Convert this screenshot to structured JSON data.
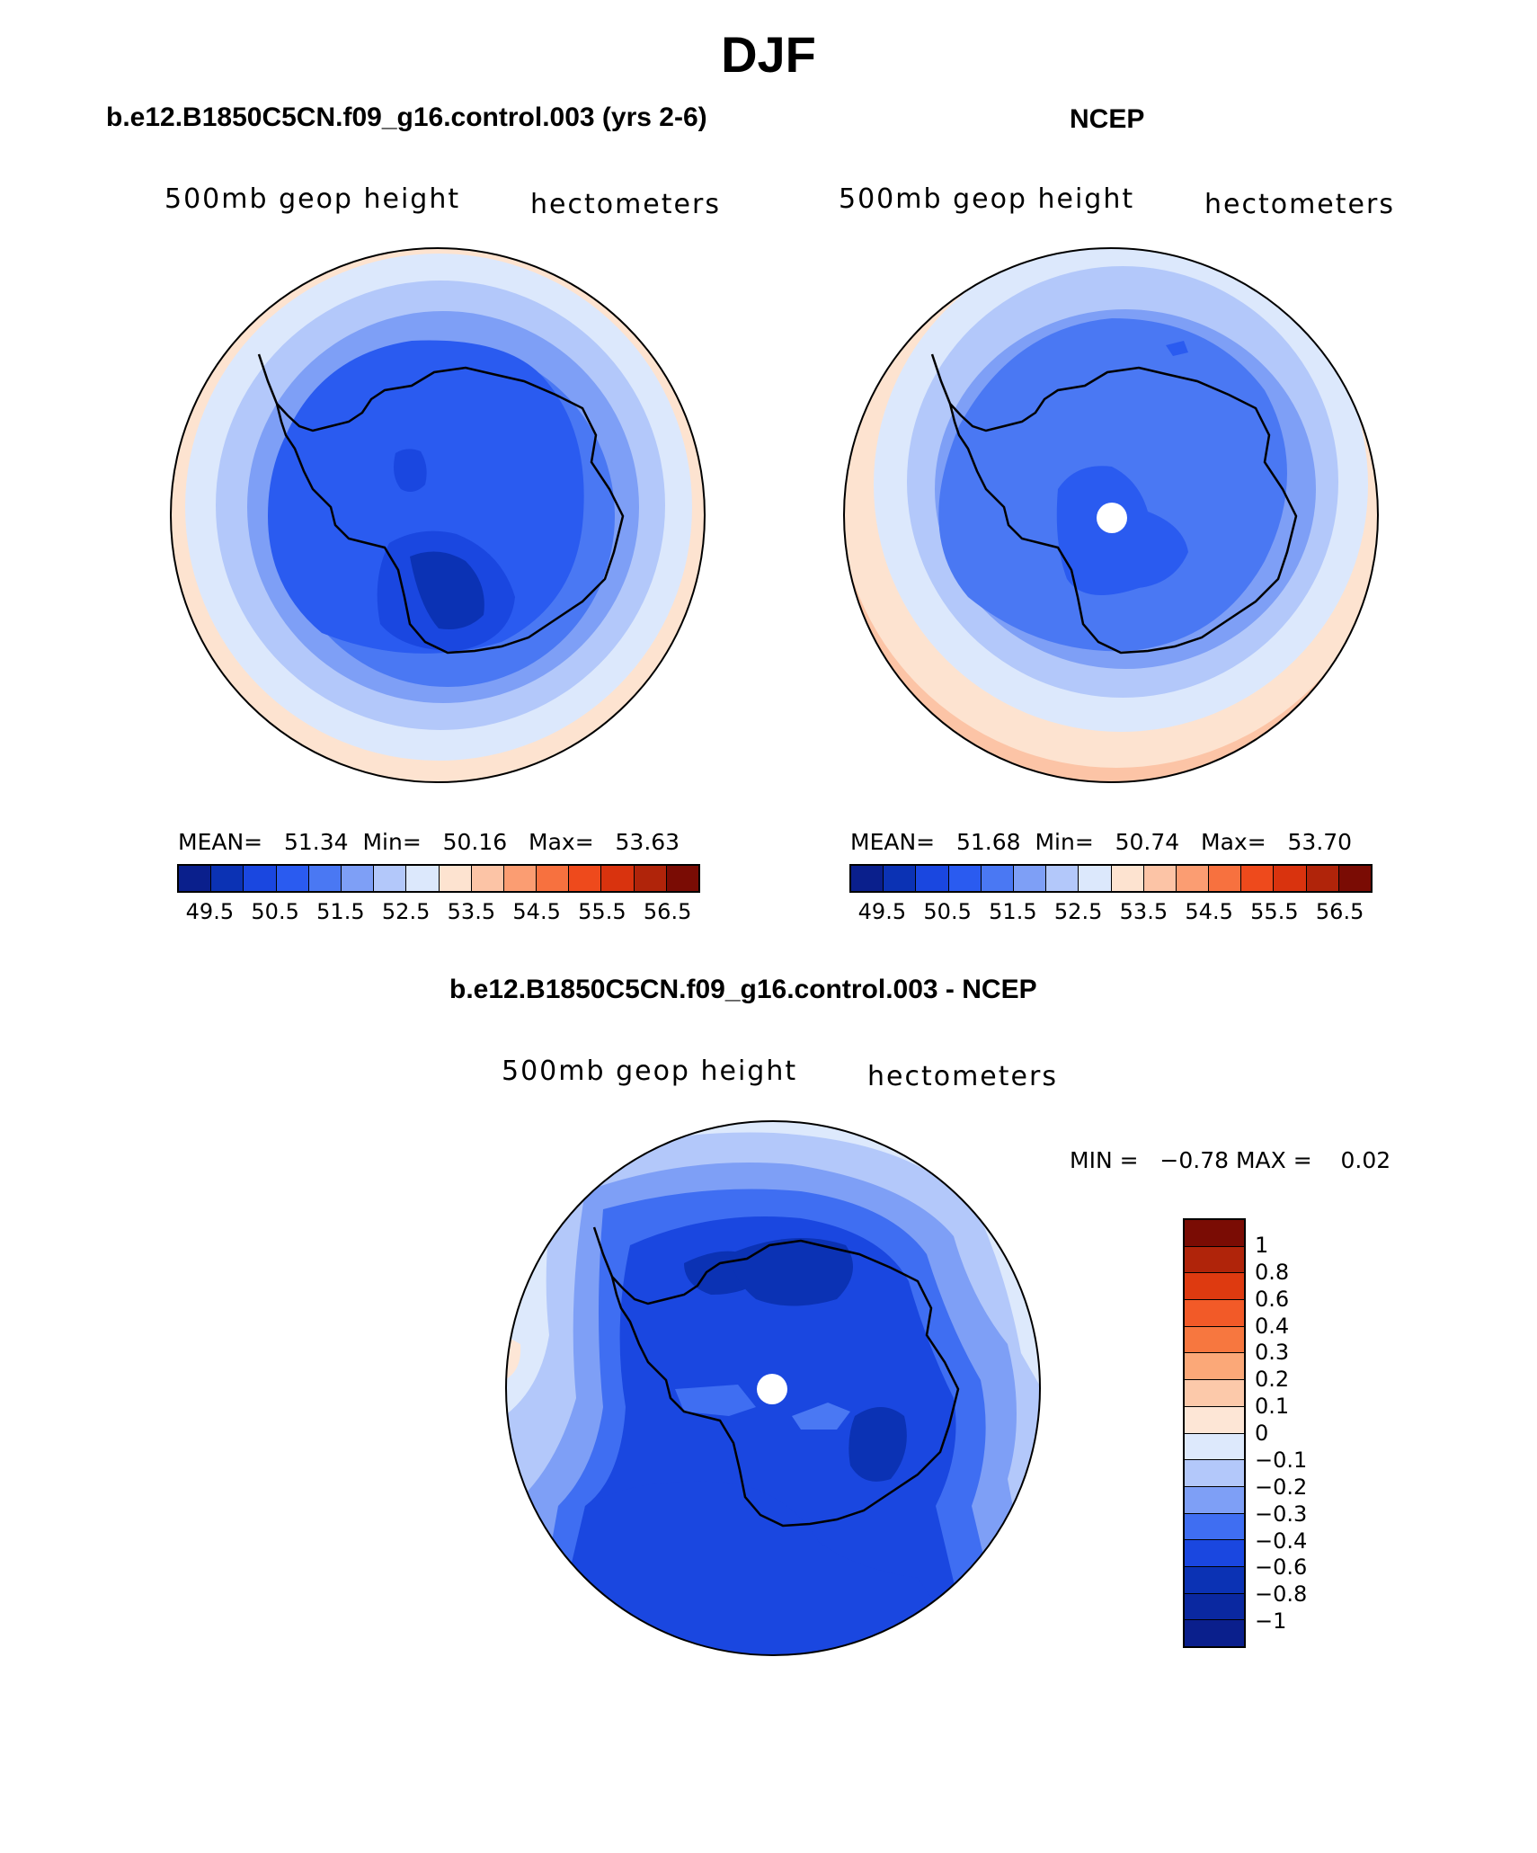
{
  "title": "DJF",
  "colors": {
    "c49": "#0a1f8c",
    "c50": "#0b32b4",
    "c505": "#1a47e0",
    "c51": "#2a5bf0",
    "c515": "#4a78f3",
    "c52": "#7e9ff6",
    "c525": "#b3c8fa",
    "c53": "#dce8fc",
    "c535": "#fde3d0",
    "c54": "#fcc4a6",
    "c545": "#fb9d72",
    "c55": "#f7713f",
    "c555": "#ee4a1c",
    "c56": "#d9330e",
    "c565": "#b0240a",
    "c57": "#7a0c04",
    "coast": "#000000"
  },
  "panels": [
    {
      "title": "b.e12.B1850C5CN.f09_g16.control.003 (yrs 2-6)",
      "subtitle_left": "500mb geop height",
      "subtitle_right": "hectometers",
      "mean_label": "MEAN=",
      "mean": "51.34",
      "min_label": "Min=",
      "min": "50.16",
      "max_label": "Max=",
      "max": "53.63"
    },
    {
      "title": "NCEP",
      "subtitle_left": "500mb geop height",
      "subtitle_right": "hectometers",
      "mean_label": "MEAN=",
      "mean": "51.68",
      "min_label": "Min=",
      "min": "50.74",
      "max_label": "Max=",
      "max": "53.70"
    }
  ],
  "colorbar_top": {
    "labels": [
      "49.5",
      "50.5",
      "51.5",
      "52.5",
      "53.5",
      "54.5",
      "55.5",
      "56.5"
    ],
    "colors": [
      "#0a1f8c",
      "#0b32b4",
      "#1a47e0",
      "#2a5bf0",
      "#4a78f3",
      "#7e9ff6",
      "#b3c8fa",
      "#dce8fc",
      "#fde3d0",
      "#fcc4a6",
      "#fb9d72",
      "#f7713f",
      "#ee4a1c",
      "#d9330e",
      "#b0240a",
      "#7a0c04"
    ]
  },
  "diff": {
    "title": "b.e12.B1850C5CN.f09_g16.control.003 - NCEP",
    "subtitle_left": "500mb geop height",
    "subtitle_right": "hectometers",
    "min_label": "MIN =",
    "min": "−0.78",
    "max_label": "MAX =",
    "max": "0.02",
    "colorbar_labels": [
      "1",
      "0.8",
      "0.6",
      "0.4",
      "0.3",
      "0.2",
      "0.1",
      "0",
      "−0.1",
      "−0.2",
      "−0.3",
      "−0.4",
      "−0.6",
      "−0.8",
      "−1"
    ],
    "colorbar_colors": [
      "#7a0c04",
      "#b0240a",
      "#de3a10",
      "#f25a28",
      "#f7773f",
      "#fba878",
      "#fcc9aa",
      "#fde6d6",
      "#dde9fc",
      "#b3c8fa",
      "#7e9ff6",
      "#3f6ef2",
      "#1a47e0",
      "#0b32b4",
      "#0a28a0",
      "#0a1f8c"
    ]
  }
}
